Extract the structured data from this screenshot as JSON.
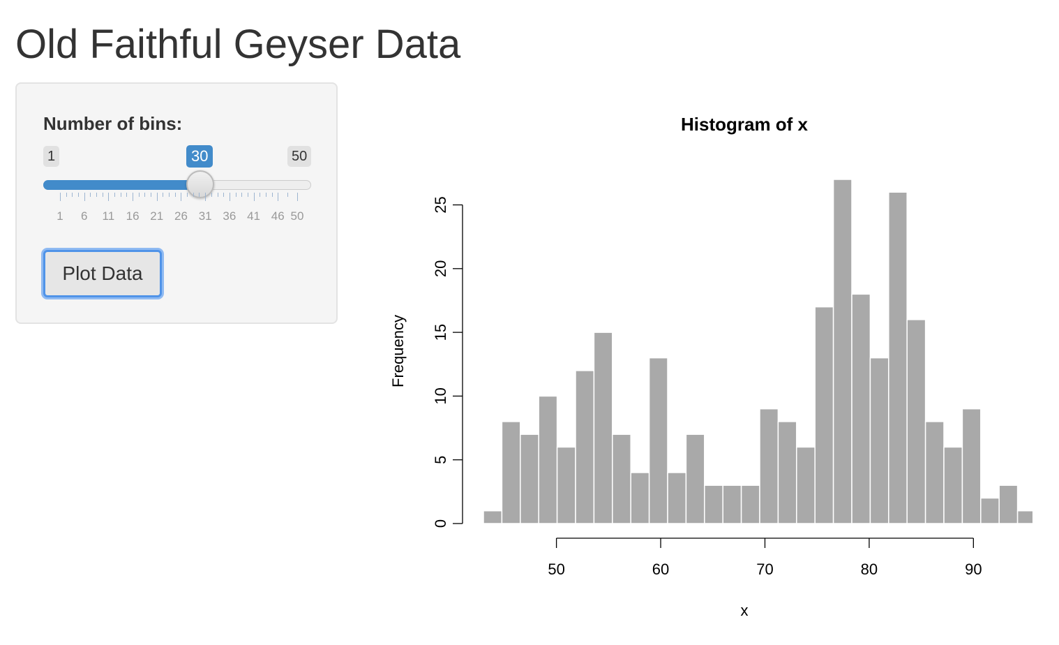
{
  "page": {
    "title": "Old Faithful Geyser Data"
  },
  "sidebar": {
    "slider": {
      "label": "Number of bins:",
      "min_label": "1",
      "max_label": "50",
      "value_label": "30",
      "min": 1,
      "max": 50,
      "value": 30,
      "tick_labels": [
        "1",
        "6",
        "11",
        "16",
        "21",
        "26",
        "31",
        "36",
        "41",
        "46",
        "50"
      ],
      "accent_color": "#428bca"
    },
    "plot_button": {
      "label": "Plot Data"
    }
  },
  "chart_data": {
    "type": "bar",
    "title": "Histogram of x",
    "xlabel": "x",
    "ylabel": "Frequency",
    "bin_edges": [
      43.0,
      44.7667,
      46.5333,
      48.3,
      50.0667,
      51.8333,
      53.6,
      55.3667,
      57.1333,
      58.9,
      60.6667,
      62.4333,
      64.2,
      65.9667,
      67.7333,
      69.5,
      71.2667,
      73.0333,
      74.8,
      76.5667,
      78.3333,
      80.1,
      81.8667,
      83.6333,
      85.4,
      87.1667,
      88.9333,
      90.7,
      92.4667,
      94.2333,
      96.0
    ],
    "values": [
      1,
      8,
      7,
      10,
      6,
      12,
      15,
      7,
      4,
      13,
      4,
      7,
      3,
      3,
      3,
      9,
      8,
      6,
      17,
      27,
      18,
      13,
      26,
      16,
      8,
      6,
      9,
      2,
      3,
      1
    ],
    "xticks": [
      50,
      60,
      70,
      80,
      90
    ],
    "yticks": [
      0,
      5,
      10,
      15,
      20,
      25
    ],
    "xlim": [
      43,
      96
    ],
    "ylim": [
      0,
      27
    ],
    "bar_color": "#a9a9a9",
    "bar_edge_color": "#ffffff"
  }
}
